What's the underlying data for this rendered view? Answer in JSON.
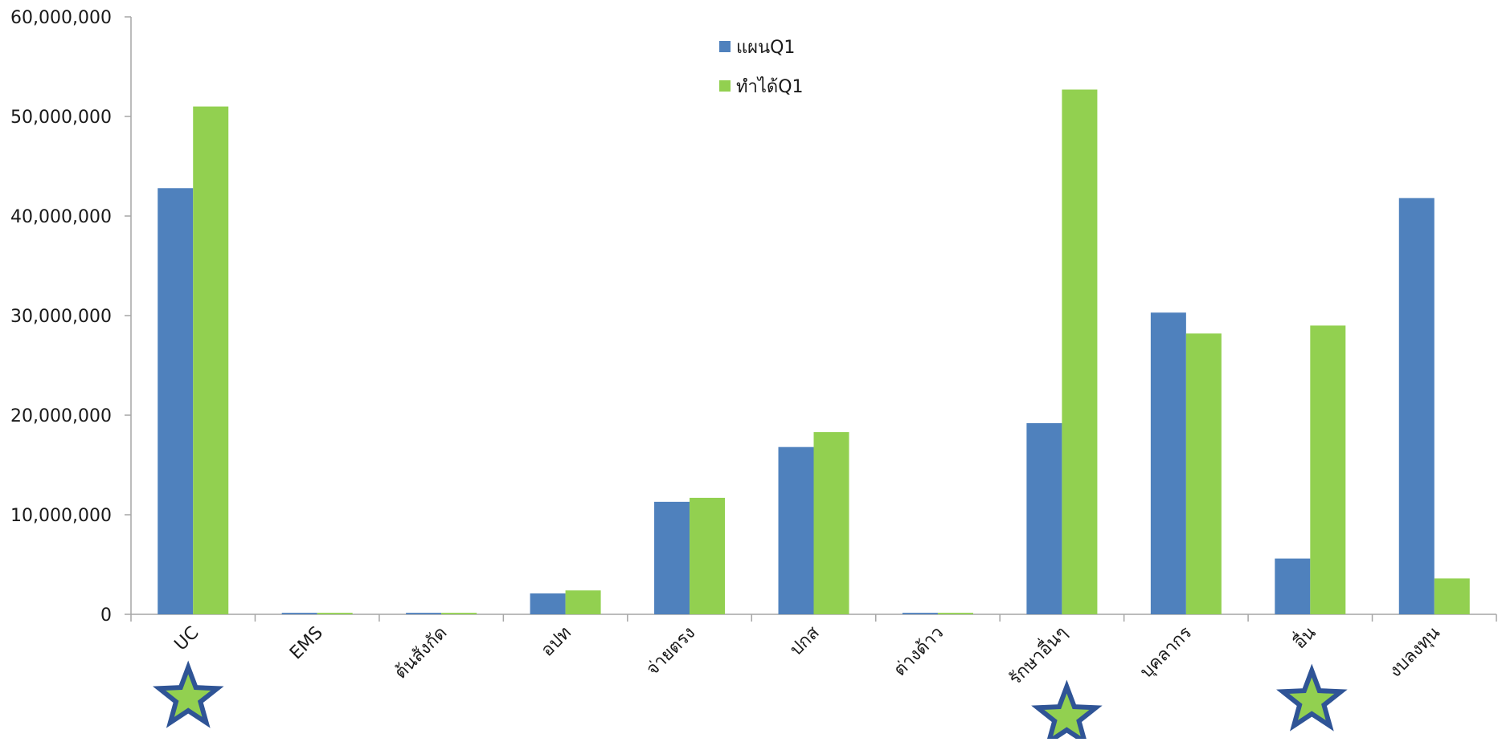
{
  "chart_data": {
    "type": "bar",
    "title": "",
    "xlabel": "",
    "ylabel": "",
    "ylim": [
      0,
      60000000
    ],
    "yticks": [
      0,
      10000000,
      20000000,
      30000000,
      40000000,
      50000000,
      60000000
    ],
    "ytick_labels": [
      "0",
      "10,000,000",
      "20,000,000",
      "30,000,000",
      "40,000,000",
      "50,000,000",
      "60,000,000"
    ],
    "grid": false,
    "legend_position": "top-center",
    "categories": [
      "UC",
      "EMS",
      "ต้นสังกัด",
      "อปท",
      "จ่ายตรง",
      "ปกส",
      "ต่างด้าว",
      "รักษาอื่นๆ",
      "บุคลากร",
      "อื่น",
      "งบลงทุน"
    ],
    "series": [
      {
        "name": "แผนQ1",
        "color": "#4F81BD",
        "values": [
          42800000,
          150000,
          150000,
          2100000,
          11300000,
          16800000,
          150000,
          19200000,
          30300000,
          5600000,
          41800000
        ]
      },
      {
        "name": "ทำได้Q1",
        "color": "#92D050",
        "values": [
          51000000,
          150000,
          150000,
          2400000,
          11700000,
          18300000,
          150000,
          52700000,
          28200000,
          29000000,
          3600000
        ]
      }
    ],
    "markers": [
      {
        "category": "UC",
        "icon": "star-icon"
      },
      {
        "category": "รักษาอื่นๆ",
        "icon": "star-icon"
      },
      {
        "category": "อื่น",
        "icon": "star-icon"
      }
    ],
    "marker_fill": "#92D050",
    "marker_stroke": "#2F5496",
    "axis_color": "#A6A6A6"
  }
}
